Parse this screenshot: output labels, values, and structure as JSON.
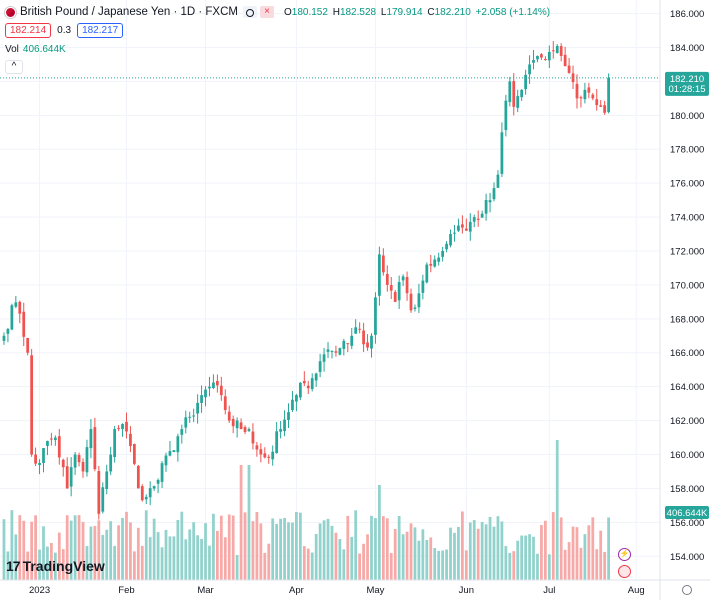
{
  "header": {
    "title": "British Pound / Japanese Yen · 1D · FXCM",
    "ohlc": {
      "o_label": "O",
      "o": "180.152",
      "h_label": "H",
      "h": "182.528",
      "l_label": "L",
      "l": "179.914",
      "c_label": "C",
      "c": "182.210",
      "change": "+2.058 (+1.14%)"
    },
    "bid": "182.214",
    "spread": "0.3",
    "ask": "182.217",
    "volume_label": "Vol",
    "volume_value": "406.644K",
    "collapse_glyph": "^"
  },
  "price_tag": {
    "price": "182.210",
    "countdown": "01:28:15"
  },
  "volume_tag": "406.644K",
  "branding": {
    "logo_mark": "17",
    "logo_text": "TradingView"
  },
  "colors": {
    "up": "#26a69a",
    "down": "#ef5350",
    "vol_up": "#92d2cc",
    "vol_down": "#f7a9a7"
  },
  "icons": [
    "chart-symbol-icon",
    "eye-icon",
    "close-icon",
    "collapse-icon",
    "lightning-icon",
    "globe-icon",
    "gear-icon"
  ],
  "chart_data": {
    "type": "candlestick",
    "y_ticks": [
      "154.000",
      "156.000",
      "158.000",
      "160.000",
      "162.000",
      "164.000",
      "166.000",
      "168.000",
      "170.000",
      "172.000",
      "174.000",
      "176.000",
      "178.000",
      "180.000",
      "182.000",
      "184.000",
      "186.000"
    ],
    "ylim": [
      152.6,
      186.8
    ],
    "x_labels": [
      {
        "label": "2023",
        "index": 9
      },
      {
        "label": "Feb",
        "index": 31
      },
      {
        "label": "Mar",
        "index": 51
      },
      {
        "label": "Apr",
        "index": 74
      },
      {
        "label": "May",
        "index": 94
      },
      {
        "label": "Jun",
        "index": 117
      },
      {
        "label": "Jul",
        "index": 138
      },
      {
        "label": "Aug",
        "index": 160
      }
    ],
    "total_slots": 166,
    "last_price": 182.21,
    "key_points": [
      {
        "i": 0,
        "v": 167.0
      },
      {
        "i": 2,
        "v": 168.8
      },
      {
        "i": 4,
        "v": 168.3
      },
      {
        "i": 6,
        "v": 166.0
      },
      {
        "i": 7,
        "v": 160.0
      },
      {
        "i": 9,
        "v": 159.5
      },
      {
        "i": 11,
        "v": 160.8
      },
      {
        "i": 13,
        "v": 161.0
      },
      {
        "i": 16,
        "v": 158.0
      },
      {
        "i": 18,
        "v": 160.0
      },
      {
        "i": 20,
        "v": 159.0
      },
      {
        "i": 22,
        "v": 161.5
      },
      {
        "i": 24,
        "v": 156.5
      },
      {
        "i": 26,
        "v": 159.0
      },
      {
        "i": 28,
        "v": 161.5
      },
      {
        "i": 30,
        "v": 161.8
      },
      {
        "i": 32,
        "v": 160.5
      },
      {
        "i": 34,
        "v": 158.0
      },
      {
        "i": 36,
        "v": 157.5
      },
      {
        "i": 39,
        "v": 158.5
      },
      {
        "i": 42,
        "v": 160.2
      },
      {
        "i": 45,
        "v": 161.5
      },
      {
        "i": 48,
        "v": 162.3
      },
      {
        "i": 50,
        "v": 163.5
      },
      {
        "i": 52,
        "v": 164.0
      },
      {
        "i": 55,
        "v": 163.5
      },
      {
        "i": 57,
        "v": 162.0
      },
      {
        "i": 60,
        "v": 161.5
      },
      {
        "i": 62,
        "v": 161.5
      },
      {
        "i": 65,
        "v": 160.0
      },
      {
        "i": 67,
        "v": 159.8
      },
      {
        "i": 70,
        "v": 161.5
      },
      {
        "i": 72,
        "v": 162.5
      },
      {
        "i": 74,
        "v": 163.5
      },
      {
        "i": 76,
        "v": 164.2
      },
      {
        "i": 78,
        "v": 164.5
      },
      {
        "i": 80,
        "v": 165.5
      },
      {
        "i": 82,
        "v": 166.2
      },
      {
        "i": 84,
        "v": 166.0
      },
      {
        "i": 86,
        "v": 166.7
      },
      {
        "i": 88,
        "v": 167.0
      },
      {
        "i": 89,
        "v": 167.5
      },
      {
        "i": 91,
        "v": 166.5
      },
      {
        "i": 93,
        "v": 167.0
      },
      {
        "i": 95,
        "v": 171.8
      },
      {
        "i": 97,
        "v": 170.0
      },
      {
        "i": 99,
        "v": 169.0
      },
      {
        "i": 101,
        "v": 170.5
      },
      {
        "i": 103,
        "v": 168.5
      },
      {
        "i": 105,
        "v": 169.5
      },
      {
        "i": 107,
        "v": 171.2
      },
      {
        "i": 109,
        "v": 171.5
      },
      {
        "i": 111,
        "v": 172.0
      },
      {
        "i": 113,
        "v": 173.0
      },
      {
        "i": 115,
        "v": 173.5
      },
      {
        "i": 117,
        "v": 173.2
      },
      {
        "i": 119,
        "v": 174.0
      },
      {
        "i": 121,
        "v": 174.2
      },
      {
        "i": 123,
        "v": 175.0
      },
      {
        "i": 125,
        "v": 176.5
      },
      {
        "i": 126,
        "v": 179.0
      },
      {
        "i": 128,
        "v": 182.0
      },
      {
        "i": 129,
        "v": 180.5
      },
      {
        "i": 131,
        "v": 181.5
      },
      {
        "i": 133,
        "v": 183.0
      },
      {
        "i": 135,
        "v": 183.5
      },
      {
        "i": 137,
        "v": 183.3
      },
      {
        "i": 139,
        "v": 183.8
      },
      {
        "i": 141,
        "v": 183.5
      },
      {
        "i": 143,
        "v": 182.5
      },
      {
        "i": 145,
        "v": 181.0
      },
      {
        "i": 147,
        "v": 181.5
      },
      {
        "i": 149,
        "v": 181.0
      },
      {
        "i": 151,
        "v": 180.5
      },
      {
        "i": 152,
        "v": 180.15
      },
      {
        "i": 153,
        "v": 182.21
      }
    ]
  }
}
